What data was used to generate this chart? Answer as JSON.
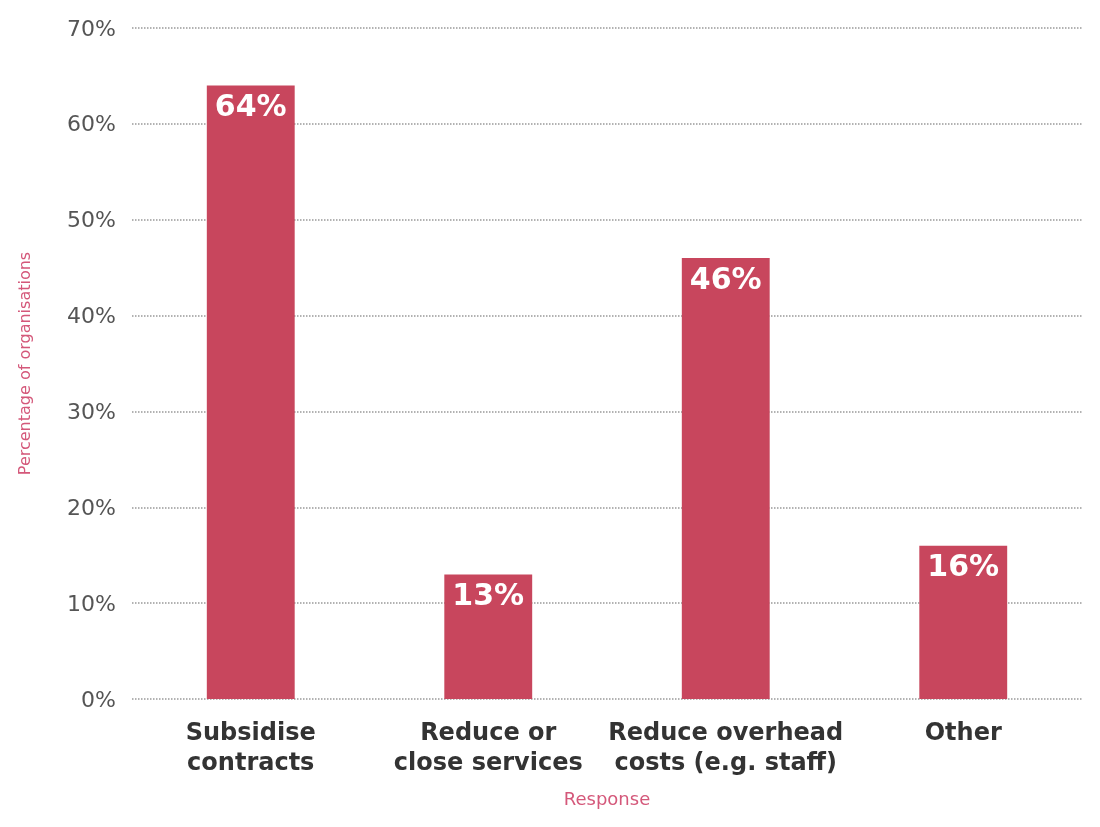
{
  "chart_data": {
    "type": "bar",
    "xlabel": "Response",
    "ylabel": "Percentage of organisations",
    "categories": [
      "Subsidise\ncontracts",
      "Reduce or\nclose services",
      "Reduce overhead\ncosts (e.g. staff)",
      "Other"
    ],
    "values": [
      64,
      13,
      46,
      16
    ],
    "color": "#c8465d",
    "value_labels": [
      "64%",
      "13%",
      "46%",
      "16%"
    ],
    "ylim": [
      0,
      70
    ],
    "yticks": [
      {
        "value": 0,
        "label": "0%"
      },
      {
        "value": 10,
        "label": "10%"
      },
      {
        "value": 20,
        "label": "20%"
      },
      {
        "value": 30,
        "label": "30%"
      },
      {
        "value": 40,
        "label": "40%"
      },
      {
        "value": 50,
        "label": "50%"
      },
      {
        "value": 60,
        "label": "60%"
      },
      {
        "value": 70,
        "label": "70%"
      }
    ],
    "grid": "y"
  }
}
